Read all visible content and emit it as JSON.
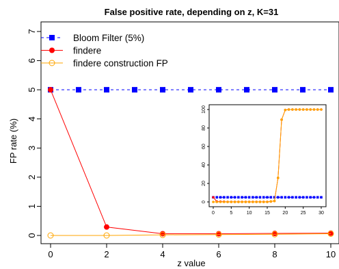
{
  "chart_data": [
    {
      "type": "line",
      "title": "False positive rate, depending on z, K=31",
      "xlabel": "z value",
      "ylabel": "FP rate (%)",
      "xlim": [
        0,
        10
      ],
      "ylim": [
        0,
        7
      ],
      "x_ticks": [
        0,
        2,
        4,
        6,
        8,
        10
      ],
      "y_ticks": [
        0,
        1,
        2,
        3,
        4,
        5,
        6,
        7
      ],
      "grid": false,
      "legend_position": "top-left",
      "series": [
        {
          "name": "Bloom Filter (5%)",
          "color": "#0000ff",
          "marker": "filled-square",
          "line": "dashed",
          "x": [
            0,
            1,
            2,
            3,
            4,
            5,
            6,
            7,
            8,
            9,
            10
          ],
          "values": [
            5,
            5,
            5,
            5,
            5,
            5,
            5,
            5,
            5,
            5,
            5
          ]
        },
        {
          "name": "findere",
          "color": "#ff0000",
          "marker": "filled-circle",
          "line": "solid",
          "x": [
            0,
            2,
            4,
            6,
            8,
            10
          ],
          "values": [
            5.0,
            0.29,
            0.06,
            0.06,
            0.07,
            0.08
          ]
        },
        {
          "name": "findere construction FP",
          "color": "#ffa500",
          "marker": "open-circle",
          "line": "solid",
          "x": [
            0,
            2,
            4,
            6,
            8,
            10
          ],
          "values": [
            0.0,
            0.0,
            0.02,
            0.03,
            0.04,
            0.06
          ]
        }
      ]
    },
    {
      "type": "line",
      "title": "",
      "xlabel": "",
      "ylabel": "",
      "xlim": [
        0,
        30
      ],
      "ylim": [
        0,
        100
      ],
      "x_ticks": [
        0,
        5,
        10,
        15,
        20,
        25,
        30
      ],
      "y_ticks": [
        0,
        20,
        40,
        60,
        80,
        100
      ],
      "grid": false,
      "series": [
        {
          "color": "#0000ff",
          "marker": "filled-square",
          "line": "dashed",
          "x": [
            0,
            1,
            2,
            3,
            4,
            5,
            6,
            7,
            8,
            9,
            10,
            11,
            12,
            13,
            14,
            15,
            16,
            17,
            18,
            19,
            20,
            21,
            22,
            23,
            24,
            25,
            26,
            27,
            28,
            29,
            30
          ],
          "values": [
            5,
            5,
            5,
            5,
            5,
            5,
            5,
            5,
            5,
            5,
            5,
            5,
            5,
            5,
            5,
            5,
            5,
            5,
            5,
            5,
            5,
            5,
            5,
            5,
            5,
            5,
            5,
            5,
            5,
            5,
            5
          ]
        },
        {
          "color": "#ff0000",
          "marker": "filled-circle",
          "line": "solid",
          "x": [
            0,
            1,
            2,
            3,
            4,
            5,
            6,
            7,
            8,
            9,
            10,
            11,
            12,
            13,
            14,
            15,
            16,
            17,
            18,
            19,
            20,
            21,
            22,
            23,
            24,
            25,
            26,
            27,
            28,
            29,
            30
          ],
          "values": [
            5,
            0.4,
            0.3,
            0.2,
            0.1,
            0.1,
            0.1,
            0.1,
            0.1,
            0.1,
            0.1,
            0.1,
            0.1,
            0.1,
            0.1,
            0.1,
            0.5,
            1,
            26,
            89,
            99.5,
            100,
            100,
            100,
            100,
            100,
            100,
            100,
            100,
            100,
            100
          ]
        },
        {
          "color": "#ffa500",
          "marker": "filled-circle",
          "line": "solid",
          "x": [
            0,
            1,
            2,
            3,
            4,
            5,
            6,
            7,
            8,
            9,
            10,
            11,
            12,
            13,
            14,
            15,
            16,
            17,
            18,
            19,
            20,
            21,
            22,
            23,
            24,
            25,
            26,
            27,
            28,
            29,
            30
          ],
          "values": [
            0,
            0,
            0,
            0,
            0,
            0,
            0,
            0,
            0,
            0,
            0,
            0,
            0,
            0,
            0,
            0,
            0.5,
            1,
            26,
            89,
            99.5,
            100,
            100,
            100,
            100,
            100,
            100,
            100,
            100,
            100,
            100
          ]
        }
      ]
    }
  ]
}
